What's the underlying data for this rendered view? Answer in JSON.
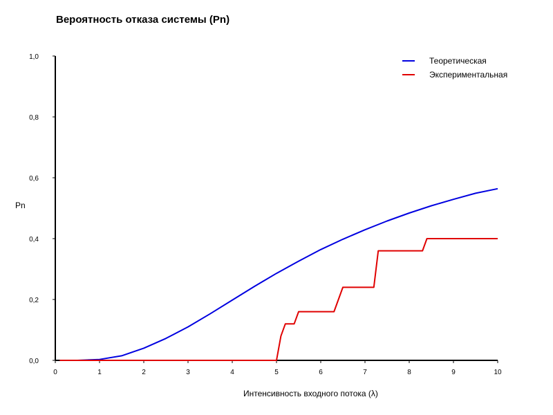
{
  "chart_data": {
    "type": "line",
    "title": "Вероятность отказа системы (Pn)",
    "xlabel": "Интенсивность входного потока (λ)",
    "ylabel": "Pn",
    "xlim": [
      0,
      10
    ],
    "ylim": [
      0,
      1.0
    ],
    "x_ticks": [
      "0",
      "1",
      "2",
      "3",
      "4",
      "5",
      "6",
      "7",
      "8",
      "9",
      "10"
    ],
    "y_ticks": [
      "0,0",
      "0,2",
      "0,4",
      "0,6",
      "0,8",
      "1,0"
    ],
    "grid": false,
    "legend_position": "top-right",
    "series": [
      {
        "name": "Теоретическая",
        "color": "#0000e0",
        "x": [
          0.1,
          0.5,
          1,
          1.5,
          2,
          2.5,
          3,
          3.5,
          4,
          4.5,
          5,
          5.5,
          6,
          6.5,
          7,
          7.5,
          8,
          8.5,
          9,
          9.5,
          10
        ],
        "y": [
          0.0,
          0.0,
          0.003,
          0.015,
          0.04,
          0.072,
          0.11,
          0.153,
          0.198,
          0.243,
          0.286,
          0.326,
          0.364,
          0.398,
          0.429,
          0.458,
          0.484,
          0.508,
          0.529,
          0.549,
          0.564
        ]
      },
      {
        "name": "Экспериментальная",
        "color": "#e00000",
        "x": [
          0.1,
          5.0,
          5.1,
          5.2,
          5.4,
          5.5,
          6.3,
          6.5,
          7.2,
          7.3,
          8.3,
          8.4,
          10
        ],
        "y": [
          0.0,
          0.0,
          0.08,
          0.12,
          0.12,
          0.16,
          0.16,
          0.24,
          0.24,
          0.36,
          0.36,
          0.4,
          0.4
        ]
      }
    ]
  }
}
